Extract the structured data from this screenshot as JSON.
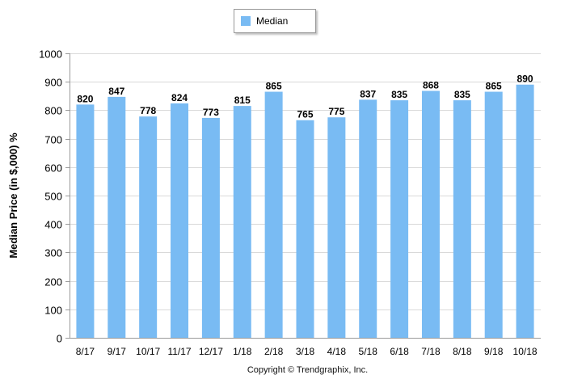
{
  "chart_data": {
    "type": "bar",
    "categories": [
      "8/17",
      "9/17",
      "10/17",
      "11/17",
      "12/17",
      "1/18",
      "2/18",
      "3/18",
      "4/18",
      "5/18",
      "6/18",
      "7/18",
      "8/18",
      "9/18",
      "10/18"
    ],
    "series": [
      {
        "name": "Median",
        "values": [
          820,
          847,
          778,
          824,
          773,
          815,
          865,
          765,
          775,
          837,
          835,
          868,
          835,
          865,
          890
        ]
      }
    ],
    "ylabel": "Median Price (in $,000) %",
    "ylim": [
      0,
      1000
    ],
    "yticks": [
      0,
      100,
      200,
      300,
      400,
      500,
      600,
      700,
      800,
      900,
      1000
    ],
    "grid": true,
    "legend": "top-center",
    "bar_color": "#79bbf3",
    "data_labels": true
  },
  "credit": "Copyright © Trendgraphix, Inc."
}
